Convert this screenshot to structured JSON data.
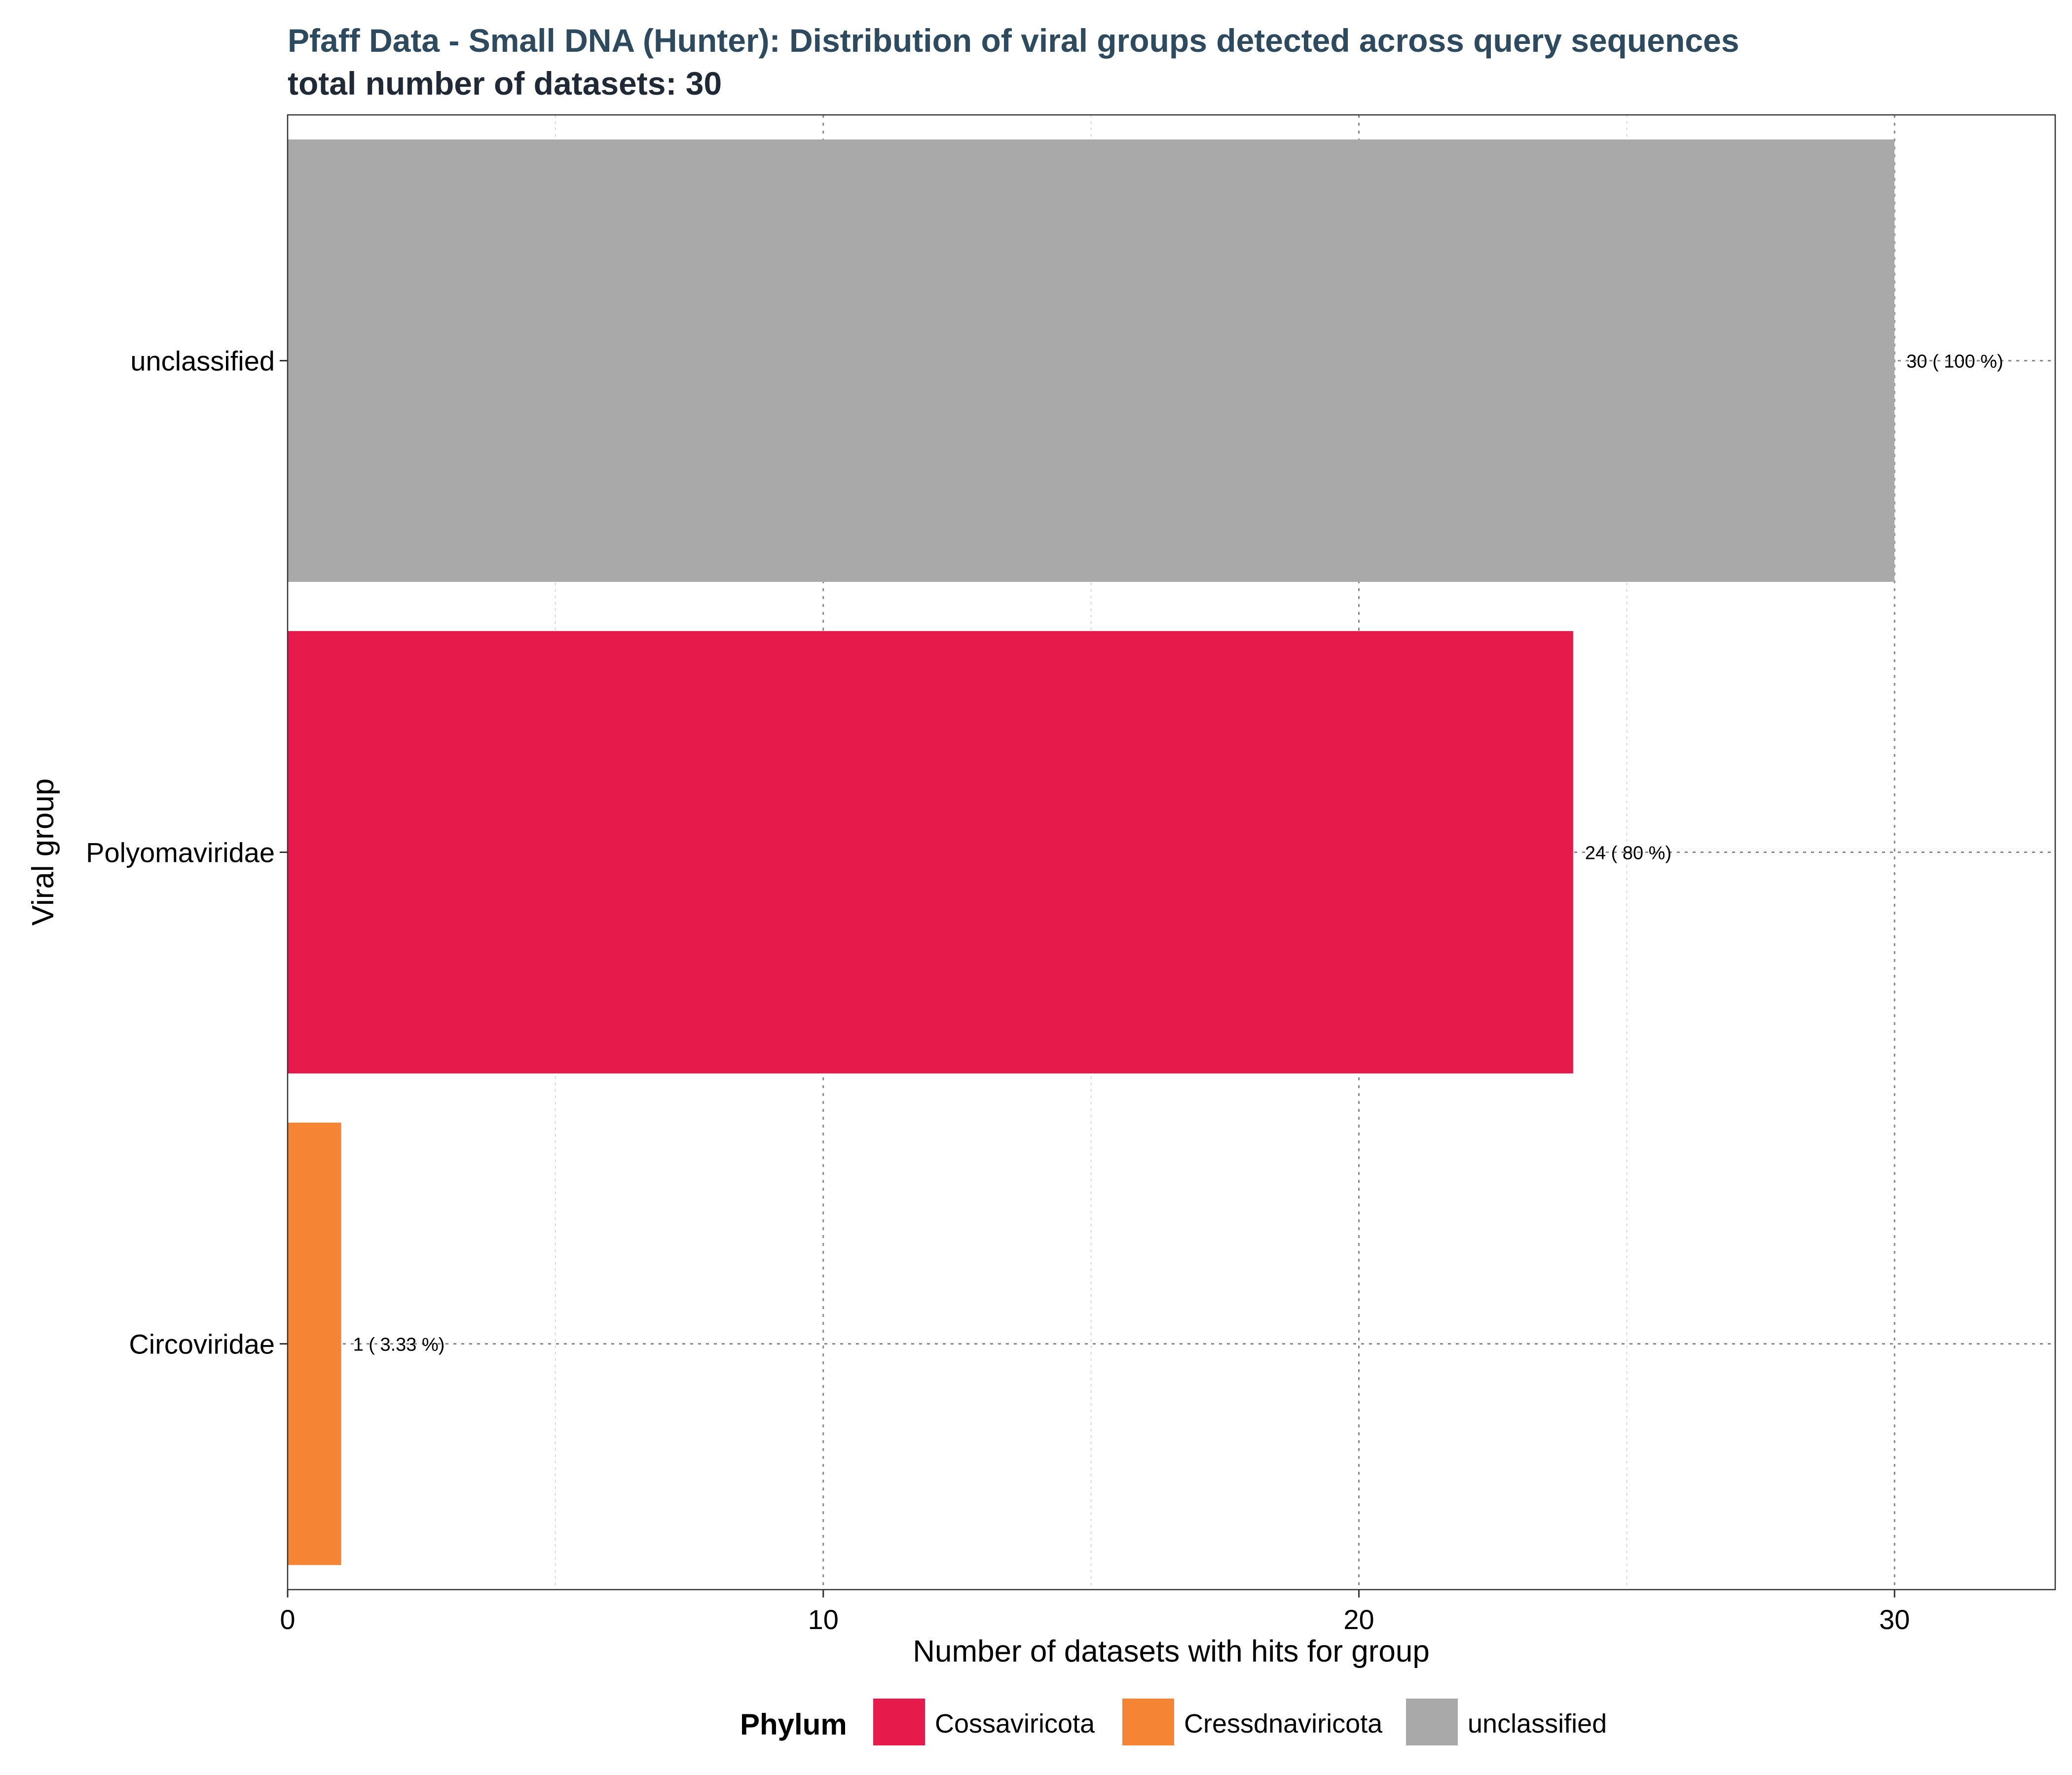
{
  "chart_data": {
    "type": "bar",
    "orientation": "horizontal",
    "title": "Pfaff Data - Small DNA (Hunter): Distribution of viral groups detected across query sequences",
    "subtitle": "total number of datasets: 30",
    "xlabel": "Number of datasets with hits for group",
    "ylabel": "Viral group",
    "xlim": [
      0,
      33
    ],
    "x_ticks": [
      0,
      10,
      20,
      30
    ],
    "x_tick_labels": [
      "0",
      "10",
      "20",
      "30"
    ],
    "grid": true,
    "legend_position": "bottom",
    "legend_title": "Phylum",
    "legend": [
      {
        "label": "Cossaviricota",
        "color": "#E61A4B"
      },
      {
        "label": "Cressdnaviricota",
        "color": "#F58434"
      },
      {
        "label": "unclassified",
        "color": "#A9A9A9"
      }
    ],
    "categories": [
      "unclassified",
      "Polyomaviridae",
      "Circoviridae"
    ],
    "values": [
      30,
      24,
      1
    ],
    "phylum": [
      "unclassified",
      "Cossaviricota",
      "Cressdnaviricota"
    ],
    "data_labels": [
      "30 ( 100 %)",
      "24 ( 80 %)",
      "1 ( 3.33 %)"
    ]
  },
  "colors": {
    "title": "#2D4A5E",
    "subtitle": "#1F2A36"
  }
}
